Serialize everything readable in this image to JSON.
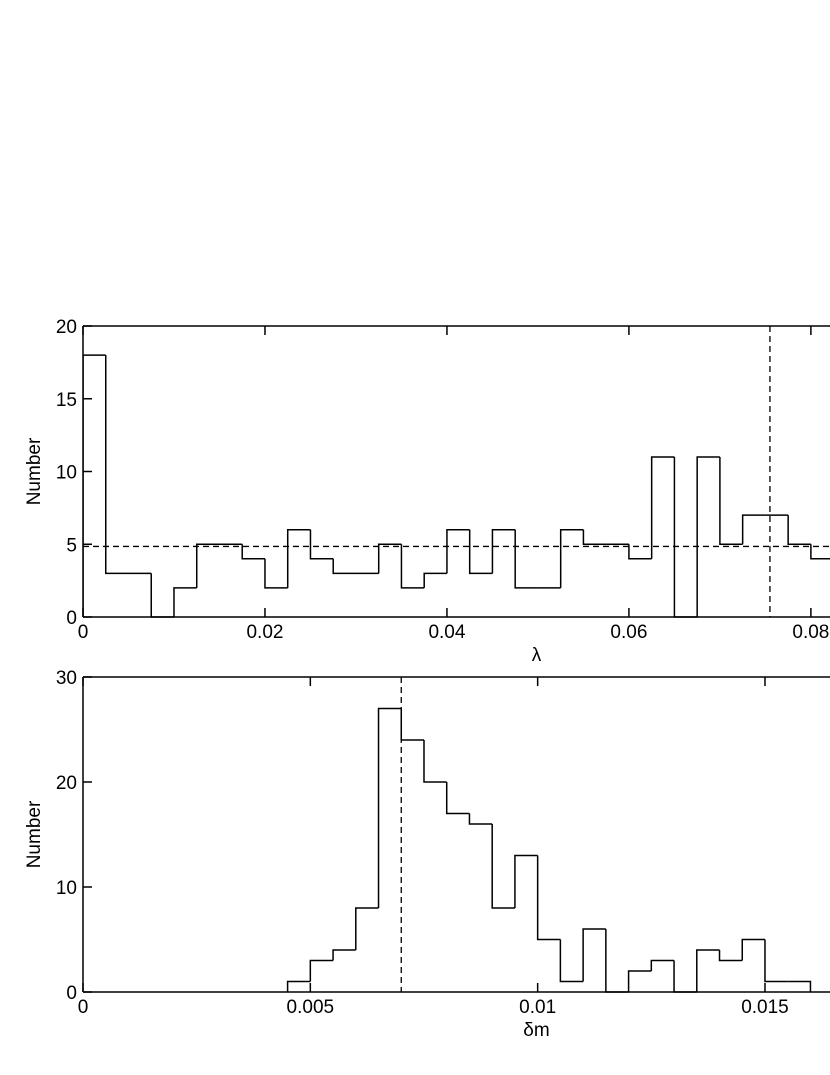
{
  "chart_data": [
    {
      "type": "histogram",
      "x_label": "λ",
      "y_label": "Number",
      "bins": [
        0,
        0.0025,
        0.005,
        0.0075,
        0.01,
        0.0125,
        0.015,
        0.0175,
        0.02,
        0.0225,
        0.025,
        0.0275,
        0.03,
        0.0325,
        0.035,
        0.0375,
        0.04,
        0.0425,
        0.045,
        0.0475,
        0.05,
        0.0525,
        0.055,
        0.0575,
        0.06,
        0.0625,
        0.065,
        0.0675,
        0.07,
        0.0725,
        0.075,
        0.0775,
        0.08,
        0.0825
      ],
      "values": [
        18,
        3,
        3,
        0,
        2,
        5,
        5,
        4,
        2,
        6,
        4,
        3,
        3,
        5,
        2,
        3,
        6,
        3,
        6,
        2,
        2,
        6,
        5,
        5,
        4,
        11,
        0,
        11,
        5,
        7,
        7,
        5,
        4
      ],
      "color": "#000000",
      "xlim": [
        0,
        0.0821
      ],
      "xticks": [
        0,
        0.02,
        0.04,
        0.06,
        0.08
      ],
      "ylim": [
        0,
        20
      ],
      "yticks": [
        0,
        5,
        10,
        15,
        20
      ],
      "hlines": [
        4.85
      ],
      "vlines": [
        0.0755
      ]
    },
    {
      "type": "histogram",
      "x_label": "δm",
      "y_label": "Number",
      "bins": [
        0.0045,
        0.005,
        0.0055,
        0.006,
        0.0065,
        0.007,
        0.0075,
        0.008,
        0.0085,
        0.009,
        0.0095,
        0.01,
        0.0105,
        0.011,
        0.0115,
        0.012,
        0.0125,
        0.013,
        0.0135,
        0.014,
        0.0145,
        0.015,
        0.0155,
        0.016
      ],
      "values": [
        1,
        3,
        4,
        8,
        27,
        24,
        20,
        17,
        16,
        8,
        13,
        5,
        1,
        6,
        0,
        2,
        3,
        0,
        4,
        3,
        5,
        1,
        1
      ],
      "color": "#000000",
      "xlim": [
        0,
        0.01643
      ],
      "xticks": [
        0,
        0.005,
        0.01,
        0.015
      ],
      "ylim": [
        0,
        30
      ],
      "yticks": [
        0,
        10,
        20,
        30
      ],
      "vlines": [
        0.007
      ]
    }
  ]
}
